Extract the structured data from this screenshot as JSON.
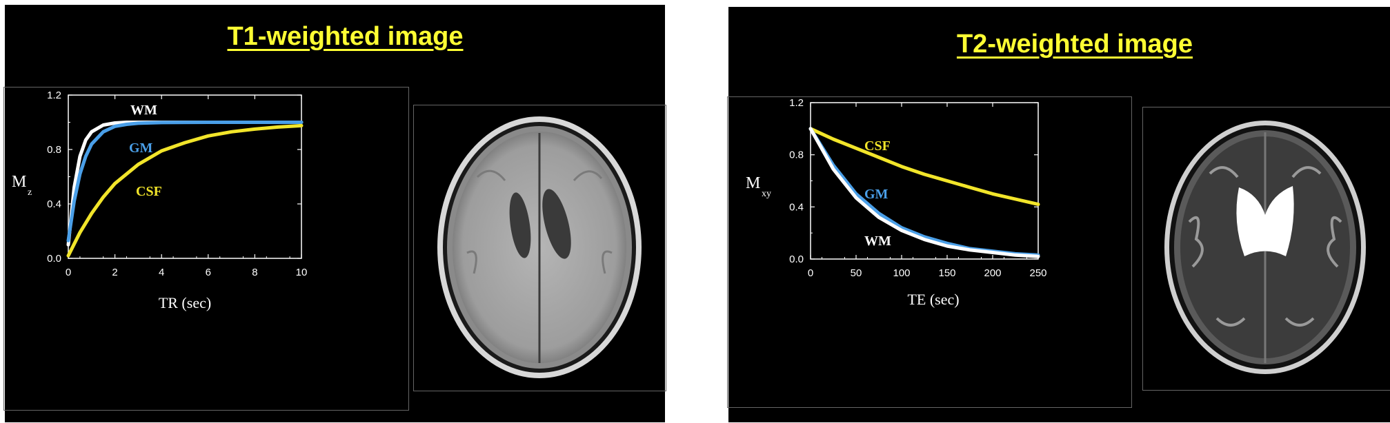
{
  "slides": {
    "t1": {
      "title": "T1-weighted image"
    },
    "t2": {
      "title": "T2-weighted image"
    }
  },
  "colors": {
    "background": "#000000",
    "title": "#ffff33",
    "wm": "#ffffff",
    "gm": "#4a9fe8",
    "csf": "#f2e52a",
    "axis": "#ffffff"
  },
  "chart_data": [
    {
      "type": "line",
      "xlabel": "TR (sec)",
      "ylabel_main": "M",
      "ylabel_sub": "z",
      "xlim": [
        0,
        10
      ],
      "ylim": [
        0,
        1.2
      ],
      "xticks": [
        "0",
        "2",
        "4",
        "6",
        "8",
        "10"
      ],
      "yticks": [
        "0.0",
        "0.4",
        "0.8",
        "1.2"
      ],
      "series": [
        {
          "name": "WM",
          "color": "#ffffff",
          "x": [
            0,
            0.25,
            0.5,
            0.75,
            1.0,
            1.5,
            2.0,
            2.5,
            3.0,
            4.0,
            6.0,
            8.0,
            10.0
          ],
          "y": [
            0.1,
            0.52,
            0.75,
            0.87,
            0.93,
            0.98,
            0.995,
            1.0,
            1.0,
            1.0,
            1.0,
            1.0,
            1.0
          ]
        },
        {
          "name": "GM",
          "color": "#4a9fe8",
          "x": [
            0,
            0.25,
            0.5,
            0.75,
            1.0,
            1.5,
            2.0,
            2.5,
            3.0,
            4.0,
            6.0,
            8.0,
            10.0
          ],
          "y": [
            0.13,
            0.42,
            0.62,
            0.75,
            0.84,
            0.93,
            0.97,
            0.985,
            0.993,
            0.998,
            1.0,
            1.0,
            1.0
          ]
        },
        {
          "name": "CSF",
          "color": "#f2e52a",
          "x": [
            0,
            0.5,
            1.0,
            1.5,
            2.0,
            3.0,
            4.0,
            5.0,
            6.0,
            7.0,
            8.0,
            9.0,
            10.0
          ],
          "y": [
            0.02,
            0.19,
            0.33,
            0.45,
            0.55,
            0.69,
            0.79,
            0.85,
            0.9,
            0.93,
            0.95,
            0.965,
            0.975
          ]
        }
      ],
      "annotations": [
        "WM",
        "GM",
        "CSF"
      ]
    },
    {
      "type": "line",
      "xlabel": "TE (sec)",
      "ylabel_main": "M",
      "ylabel_sub": "xy",
      "xlim": [
        0,
        250
      ],
      "ylim": [
        0,
        1.2
      ],
      "xticks": [
        "0",
        "50",
        "100",
        "150",
        "200",
        "250"
      ],
      "yticks": [
        "0.0",
        "0.4",
        "0.8",
        "1.2"
      ],
      "series": [
        {
          "name": "CSF",
          "color": "#f2e52a",
          "x": [
            0,
            25,
            50,
            75,
            100,
            125,
            150,
            175,
            200,
            225,
            250
          ],
          "y": [
            1.0,
            0.92,
            0.85,
            0.78,
            0.71,
            0.65,
            0.6,
            0.55,
            0.5,
            0.46,
            0.42
          ]
        },
        {
          "name": "GM",
          "color": "#4a9fe8",
          "x": [
            0,
            25,
            50,
            75,
            100,
            125,
            150,
            175,
            200,
            225,
            250
          ],
          "y": [
            1.0,
            0.72,
            0.5,
            0.35,
            0.24,
            0.17,
            0.12,
            0.08,
            0.06,
            0.04,
            0.03
          ]
        },
        {
          "name": "WM",
          "color": "#ffffff",
          "x": [
            0,
            25,
            50,
            75,
            100,
            125,
            150,
            175,
            200,
            225,
            250
          ],
          "y": [
            1.0,
            0.69,
            0.47,
            0.32,
            0.22,
            0.15,
            0.1,
            0.07,
            0.05,
            0.03,
            0.02
          ]
        }
      ],
      "annotations": [
        "CSF",
        "GM",
        "WM"
      ]
    }
  ]
}
